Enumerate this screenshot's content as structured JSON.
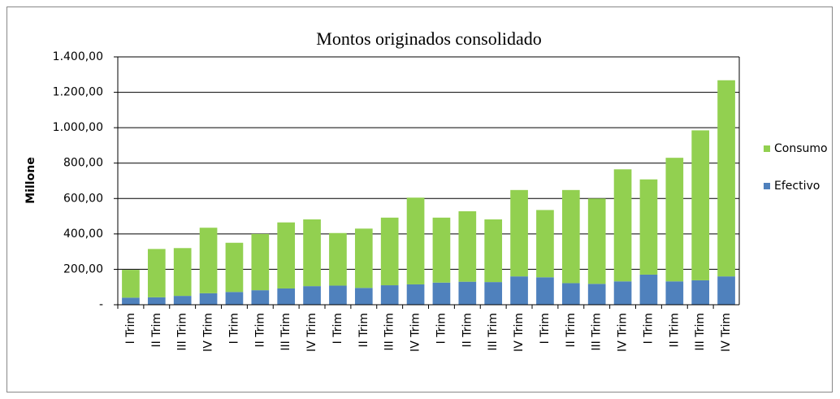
{
  "chart_data": {
    "type": "stacked_bar",
    "title": "Montos originados consolidado",
    "y_label": "Millone",
    "categories": [
      "I Trim",
      "II Trim",
      "III Trim",
      "IV Trim",
      "I Trim",
      "II Trim",
      "III Trim",
      "IV Trim",
      "I Trim",
      "II Trim",
      "III Trim",
      "IV Trim",
      "I Trim",
      "II Trim",
      "III Trim",
      "IV Trim",
      "I Trim",
      "II Trim",
      "III Trim",
      "IV Trim",
      "I Trim",
      "II Trim",
      "III Trim",
      "IV Trim"
    ],
    "series": [
      {
        "name": "Efectivo",
        "color": "#4f81bd",
        "values": [
          40,
          42,
          50,
          65,
          72,
          82,
          92,
          105,
          108,
          95,
          110,
          115,
          125,
          130,
          128,
          160,
          155,
          122,
          118,
          132,
          170,
          132,
          138,
          160
        ]
      },
      {
        "name": "Consumo",
        "color": "#92d050",
        "values": [
          157,
          273,
          270,
          370,
          278,
          318,
          373,
          377,
          297,
          335,
          382,
          490,
          367,
          398,
          354,
          488,
          380,
          526,
          482,
          633,
          538,
          698,
          847,
          1108
        ]
      }
    ],
    "ylim": [
      0,
      1400
    ],
    "yticks": [
      {
        "value": 0,
        "label": "-"
      },
      {
        "value": 200,
        "label": "200,00"
      },
      {
        "value": 400,
        "label": "400,00"
      },
      {
        "value": 600,
        "label": "600,00"
      },
      {
        "value": 800,
        "label": "800,00"
      },
      {
        "value": 1000,
        "label": "1.000,00"
      },
      {
        "value": 1200,
        "label": "1.200,00"
      },
      {
        "value": 1400,
        "label": "1.400,00"
      }
    ],
    "grid": true,
    "legend": "right"
  }
}
